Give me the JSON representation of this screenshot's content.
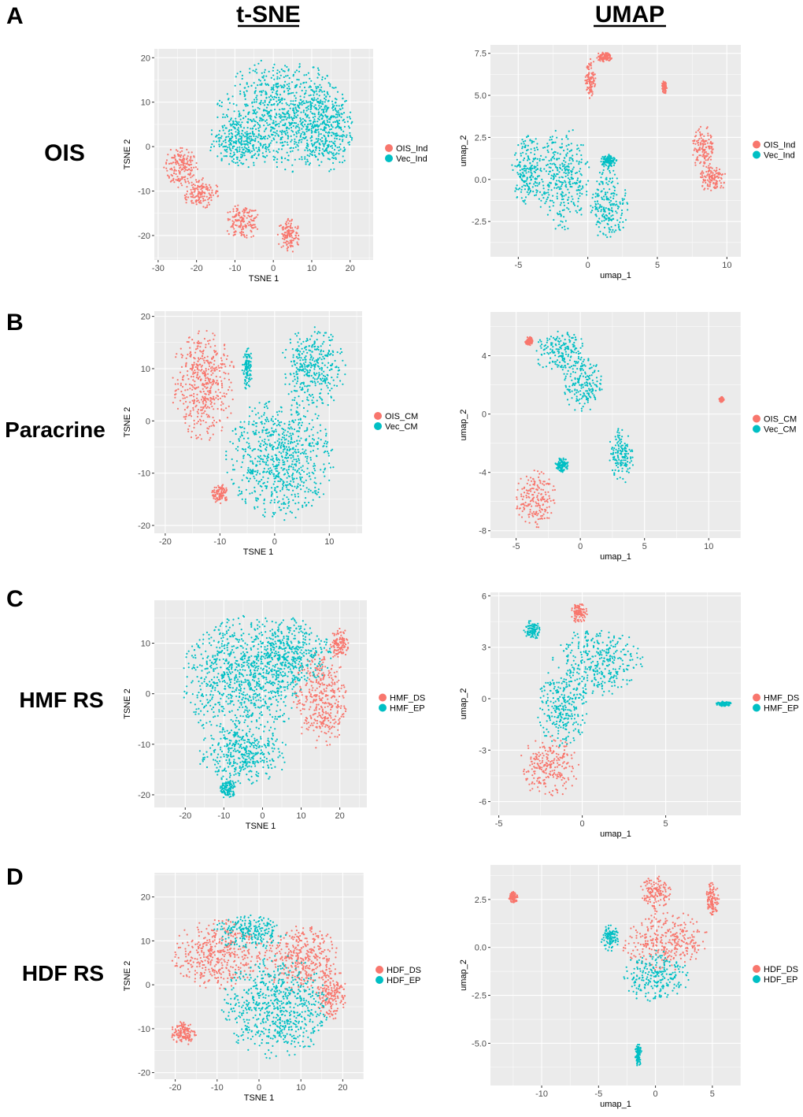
{
  "columns": [
    {
      "key": "tsne",
      "header": "t-SNE"
    },
    {
      "key": "umap",
      "header": "UMAP"
    }
  ],
  "colors": {
    "red": "#F8766D",
    "teal": "#00BFC4",
    "panel_bg": "#EBEBEB",
    "grid": "#FFFFFF"
  },
  "rows": [
    {
      "letter": "A",
      "label": "OIS"
    },
    {
      "letter": "B",
      "label": "Paracrine"
    },
    {
      "letter": "C",
      "label": "HMF RS"
    },
    {
      "letter": "D",
      "label": "HDF RS"
    }
  ],
  "chart_data": [
    {
      "type": "scatter",
      "id": "A-tsne",
      "xlabel": "TSNE 1",
      "ylabel": "TSNE 2",
      "xlim": [
        -31,
        26
      ],
      "ylim": [
        -25.5,
        22
      ],
      "xticks": [
        -30,
        -20,
        -10,
        0,
        10,
        20
      ],
      "yticks": [
        -20,
        -10,
        0,
        10,
        20
      ],
      "legend": [
        "OIS_Ind",
        "Vec_Ind"
      ],
      "clusters": [
        {
          "series": 1,
          "cx": 2,
          "cy": 7,
          "rx": 17,
          "ry": 13
        },
        {
          "series": 1,
          "cx": -9,
          "cy": 1,
          "rx": 8,
          "ry": 6
        },
        {
          "series": 1,
          "cx": 13,
          "cy": 4,
          "rx": 8,
          "ry": 10
        },
        {
          "series": 0,
          "cx": -24,
          "cy": -4.5,
          "rx": 4.5,
          "ry": 5
        },
        {
          "series": 0,
          "cx": -19,
          "cy": -10.5,
          "rx": 5,
          "ry": 3.5
        },
        {
          "series": 0,
          "cx": -8,
          "cy": -17,
          "rx": 5,
          "ry": 4
        },
        {
          "series": 0,
          "cx": 4,
          "cy": -20,
          "rx": 3,
          "ry": 4
        }
      ]
    },
    {
      "type": "scatter",
      "id": "A-umap",
      "xlabel": "umap_1",
      "ylabel": "umap_2",
      "xlim": [
        -7,
        11
      ],
      "ylim": [
        -4.6,
        8
      ],
      "xticks": [
        -5,
        0,
        5,
        10
      ],
      "yticks": [
        -2.5,
        0.0,
        2.5,
        5.0,
        7.5
      ],
      "legend": [
        "OIS_Ind",
        "Vec_Ind"
      ],
      "clusters": [
        {
          "series": 1,
          "cx": -4.3,
          "cy": 0.5,
          "rx": 1.2,
          "ry": 2.2
        },
        {
          "series": 1,
          "cx": -1.8,
          "cy": 0.0,
          "rx": 2.0,
          "ry": 3.2
        },
        {
          "series": 1,
          "cx": 1.5,
          "cy": -1.5,
          "rx": 1.4,
          "ry": 2.2
        },
        {
          "series": 1,
          "cx": 1.5,
          "cy": 1.1,
          "rx": 0.6,
          "ry": 0.4
        },
        {
          "series": 0,
          "cx": 0.2,
          "cy": 6.0,
          "rx": 0.4,
          "ry": 1.2
        },
        {
          "series": 0,
          "cx": 1.2,
          "cy": 7.3,
          "rx": 0.6,
          "ry": 0.3
        },
        {
          "series": 0,
          "cx": 8.3,
          "cy": 1.8,
          "rx": 0.8,
          "ry": 1.5
        },
        {
          "series": 0,
          "cx": 9.0,
          "cy": 0.0,
          "rx": 1.0,
          "ry": 0.8
        },
        {
          "series": 0,
          "cx": 5.5,
          "cy": 5.5,
          "rx": 0.2,
          "ry": 0.4
        }
      ]
    },
    {
      "type": "scatter",
      "id": "B-tsne",
      "xlabel": "TSNE 1",
      "ylabel": "TSNE 2",
      "xlim": [
        -22,
        16
      ],
      "ylim": [
        -21.5,
        21
      ],
      "xticks": [
        -20,
        -10,
        0,
        10
      ],
      "yticks": [
        -20,
        -10,
        0,
        10,
        20
      ],
      "legend": [
        "OIS_CM",
        "Vec_CM"
      ],
      "clusters": [
        {
          "series": 0,
          "cx": -13,
          "cy": 7,
          "rx": 6,
          "ry": 11
        },
        {
          "series": 0,
          "cx": -10,
          "cy": -14,
          "rx": 1.5,
          "ry": 2
        },
        {
          "series": 1,
          "cx": 7,
          "cy": 10,
          "rx": 6,
          "ry": 8
        },
        {
          "series": 1,
          "cx": 1,
          "cy": -7,
          "rx": 10,
          "ry": 12
        },
        {
          "series": 1,
          "cx": -5,
          "cy": 10,
          "rx": 1,
          "ry": 4
        }
      ]
    },
    {
      "type": "scatter",
      "id": "B-umap",
      "xlabel": "umap_1",
      "ylabel": "umap_2",
      "xlim": [
        -7,
        12.5
      ],
      "ylim": [
        -8.5,
        7
      ],
      "xticks": [
        -5,
        0,
        5,
        10
      ],
      "yticks": [
        -8,
        -4,
        0,
        4
      ],
      "legend": [
        "OIS_CM",
        "Vec_CM"
      ],
      "clusters": [
        {
          "series": 1,
          "cx": -1.5,
          "cy": 4.2,
          "rx": 2.0,
          "ry": 1.6
        },
        {
          "series": 1,
          "cx": 0.2,
          "cy": 2.0,
          "rx": 1.5,
          "ry": 2.0
        },
        {
          "series": 1,
          "cx": 3.2,
          "cy": -2.8,
          "rx": 1.0,
          "ry": 2.0
        },
        {
          "series": 1,
          "cx": -1.5,
          "cy": -3.5,
          "rx": 0.6,
          "ry": 0.5
        },
        {
          "series": 0,
          "cx": -3.5,
          "cy": -5.8,
          "rx": 1.6,
          "ry": 2.0
        },
        {
          "series": 0,
          "cx": -4.0,
          "cy": 5.0,
          "rx": 0.3,
          "ry": 0.3
        },
        {
          "series": 0,
          "cx": 11.0,
          "cy": 1.0,
          "rx": 0.2,
          "ry": 0.2
        }
      ]
    },
    {
      "type": "scatter",
      "id": "C-tsne",
      "xlabel": "TSNE 1",
      "ylabel": "TSNE 2",
      "xlim": [
        -28,
        27
      ],
      "ylim": [
        -22.5,
        18.5
      ],
      "xticks": [
        -20,
        -10,
        0,
        10,
        20
      ],
      "yticks": [
        -20,
        -10,
        0,
        10
      ],
      "legend": [
        "HMF_DS",
        "HMF_EP"
      ],
      "clusters": [
        {
          "series": 1,
          "cx": -5,
          "cy": 3,
          "rx": 16,
          "ry": 13
        },
        {
          "series": 1,
          "cx": 8,
          "cy": 8,
          "rx": 10,
          "ry": 7
        },
        {
          "series": 1,
          "cx": -5,
          "cy": -12,
          "rx": 12,
          "ry": 6
        },
        {
          "series": 0,
          "cx": 15,
          "cy": -1,
          "rx": 7,
          "ry": 10
        },
        {
          "series": 0,
          "cx": 20,
          "cy": 10,
          "rx": 2.5,
          "ry": 3
        },
        {
          "series": 1,
          "cx": -9,
          "cy": -19,
          "rx": 2,
          "ry": 2
        }
      ]
    },
    {
      "type": "scatter",
      "id": "C-umap",
      "xlabel": "umap_1",
      "ylabel": "umap_2",
      "xlim": [
        -5.5,
        9.5
      ],
      "ylim": [
        -6.8,
        6.2
      ],
      "xticks": [
        -5,
        0,
        5
      ],
      "yticks": [
        -6,
        -3,
        0,
        3,
        6
      ],
      "legend": [
        "HMF_DS",
        "HMF_EP"
      ],
      "clusters": [
        {
          "series": 1,
          "cx": 1.0,
          "cy": 2.2,
          "rx": 2.8,
          "ry": 2.0
        },
        {
          "series": 1,
          "cx": -1.2,
          "cy": -0.5,
          "rx": 1.5,
          "ry": 2.5
        },
        {
          "series": 1,
          "cx": -3.0,
          "cy": 4.0,
          "rx": 0.5,
          "ry": 0.6
        },
        {
          "series": 0,
          "cx": -2.0,
          "cy": -4.0,
          "rx": 1.8,
          "ry": 1.8
        },
        {
          "series": 0,
          "cx": -0.2,
          "cy": 5.0,
          "rx": 0.5,
          "ry": 0.6
        },
        {
          "series": 1,
          "cx": 8.5,
          "cy": -0.3,
          "rx": 0.5,
          "ry": 0.15
        }
      ]
    },
    {
      "type": "scatter",
      "id": "D-tsne",
      "xlabel": "TSNE 1",
      "ylabel": "TSNE 2",
      "xlim": [
        -25,
        25
      ],
      "ylim": [
        -21.5,
        25.5
      ],
      "xticks": [
        -20,
        -10,
        0,
        10,
        20
      ],
      "yticks": [
        -20,
        -10,
        0,
        10,
        20
      ],
      "legend": [
        "HDF_DS",
        "HDF_EP"
      ],
      "clusters": [
        {
          "series": 0,
          "cx": -10,
          "cy": 7,
          "rx": 11,
          "ry": 8
        },
        {
          "series": 1,
          "cx": 4,
          "cy": -5,
          "rx": 13,
          "ry": 12
        },
        {
          "series": 0,
          "cx": 10,
          "cy": 6,
          "rx": 9,
          "ry": 8
        },
        {
          "series": 1,
          "cx": -2,
          "cy": 12,
          "rx": 9,
          "ry": 4
        },
        {
          "series": 0,
          "cx": -18,
          "cy": -11,
          "rx": 3,
          "ry": 3
        },
        {
          "series": 0,
          "cx": 17,
          "cy": -2,
          "rx": 4,
          "ry": 6
        }
      ]
    },
    {
      "type": "scatter",
      "id": "D-umap",
      "xlabel": "umap_1",
      "ylabel": "umap_2",
      "xlim": [
        -14.5,
        7.5
      ],
      "ylim": [
        -7.2,
        4.3
      ],
      "xticks": [
        -10,
        -5,
        0,
        5
      ],
      "yticks": [
        -5.0,
        -2.5,
        0.0,
        2.5
      ],
      "legend": [
        "HDF_DS",
        "HDF_EP"
      ],
      "clusters": [
        {
          "series": 0,
          "cx": 1.0,
          "cy": 0.3,
          "rx": 4.0,
          "ry": 1.6
        },
        {
          "series": 1,
          "cx": 0.0,
          "cy": -1.5,
          "rx": 3.0,
          "ry": 1.4
        },
        {
          "series": 0,
          "cx": 0.0,
          "cy": 2.8,
          "rx": 1.4,
          "ry": 1.0
        },
        {
          "series": 1,
          "cx": -4.0,
          "cy": 0.5,
          "rx": 0.8,
          "ry": 0.7
        },
        {
          "series": 0,
          "cx": 5.0,
          "cy": 2.5,
          "rx": 0.6,
          "ry": 0.9
        },
        {
          "series": 1,
          "cx": -1.5,
          "cy": -5.6,
          "rx": 0.3,
          "ry": 0.6
        },
        {
          "series": 0,
          "cx": -12.5,
          "cy": 2.6,
          "rx": 0.4,
          "ry": 0.3
        }
      ]
    }
  ]
}
